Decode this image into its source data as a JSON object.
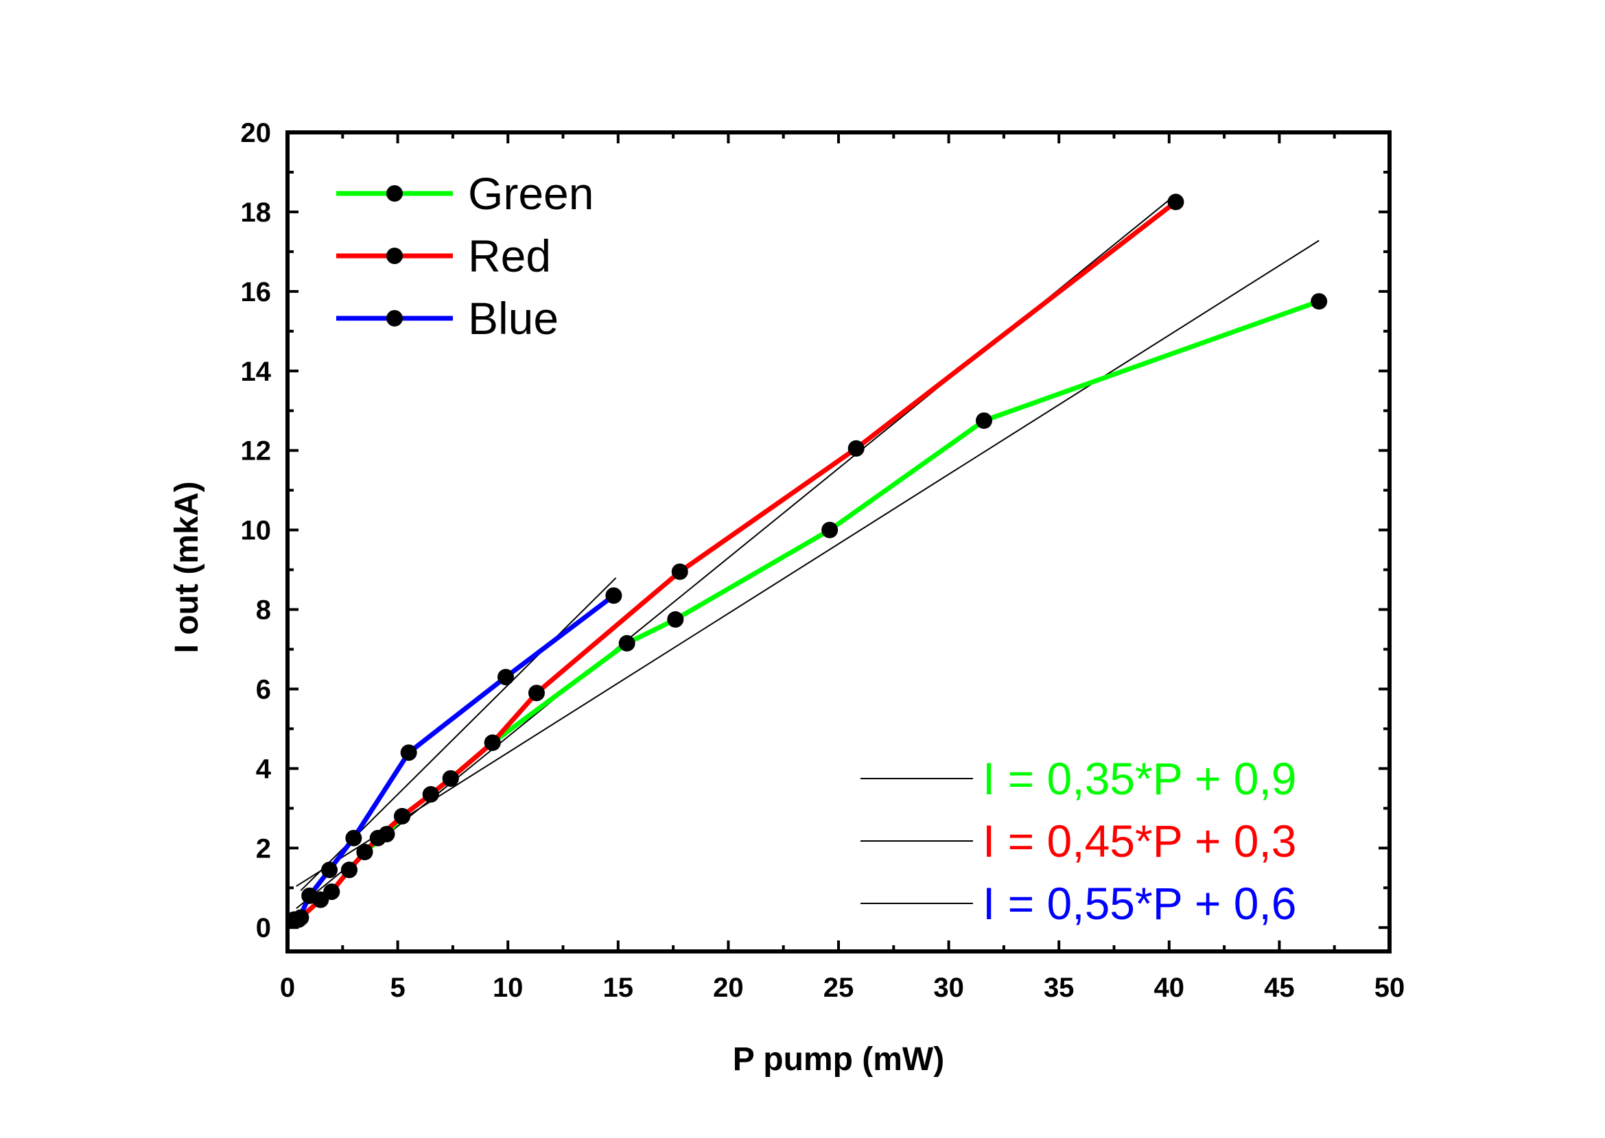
{
  "chart_data": {
    "type": "line",
    "xlabel": "P pump (mW)",
    "ylabel": "I out (mkA)",
    "xlim": [
      0,
      50
    ],
    "ylim": [
      -0.6,
      20
    ],
    "x_ticks": [
      "0",
      "5",
      "10",
      "15",
      "20",
      "25",
      "30",
      "35",
      "40",
      "45",
      "50"
    ],
    "y_ticks": [
      "0",
      "2",
      "4",
      "6",
      "8",
      "10",
      "12",
      "14",
      "16",
      "18",
      "20"
    ],
    "grid": false,
    "legend_position": "top-left",
    "series": [
      {
        "name": "Green",
        "color": "#00ff00",
        "points": [
          [
            0.3,
            0.2
          ],
          [
            0.6,
            0.25
          ],
          [
            1.5,
            0.7
          ],
          [
            2.0,
            0.9
          ],
          [
            2.8,
            1.45
          ],
          [
            3.5,
            1.9
          ],
          [
            4.5,
            2.35
          ],
          [
            5.2,
            2.8
          ],
          [
            6.5,
            3.35
          ],
          [
            7.4,
            3.75
          ],
          [
            9.3,
            4.65
          ],
          [
            15.4,
            7.15
          ],
          [
            17.6,
            7.75
          ],
          [
            24.6,
            10.0
          ],
          [
            31.6,
            12.75
          ],
          [
            46.8,
            15.75
          ]
        ]
      },
      {
        "name": "Red",
        "color": "#ff0000",
        "points": [
          [
            0.3,
            0.2
          ],
          [
            0.6,
            0.25
          ],
          [
            1.5,
            0.7
          ],
          [
            2.0,
            0.9
          ],
          [
            2.8,
            1.45
          ],
          [
            3.5,
            1.9
          ],
          [
            4.1,
            2.25
          ],
          [
            5.2,
            2.8
          ],
          [
            6.5,
            3.35
          ],
          [
            7.4,
            3.75
          ],
          [
            9.3,
            4.65
          ],
          [
            11.3,
            5.9
          ],
          [
            17.8,
            8.95
          ],
          [
            25.8,
            12.05
          ],
          [
            40.3,
            18.25
          ]
        ]
      },
      {
        "name": "Blue",
        "color": "#0000ff",
        "points": [
          [
            0.5,
            0.2
          ],
          [
            1.0,
            0.8
          ],
          [
            1.9,
            1.45
          ],
          [
            3.0,
            2.25
          ],
          [
            5.5,
            4.4
          ],
          [
            9.9,
            6.3
          ],
          [
            14.8,
            8.35
          ]
        ]
      }
    ],
    "fit_lines": [
      {
        "label": "I = 0,35*P + 0,9",
        "color": "#00ff00",
        "slope": 0.35,
        "intercept": 0.9,
        "x_range": [
          0.4,
          46.8
        ]
      },
      {
        "label": "I = 0,45*P + 0,3",
        "color": "#ff0000",
        "slope": 0.45,
        "intercept": 0.3,
        "x_range": [
          0.4,
          40.3
        ]
      },
      {
        "label": "I = 0,55*P + 0,6",
        "color": "#0000ff",
        "slope": 0.55,
        "intercept": 0.6,
        "x_range": [
          0.6,
          14.9
        ]
      }
    ]
  }
}
